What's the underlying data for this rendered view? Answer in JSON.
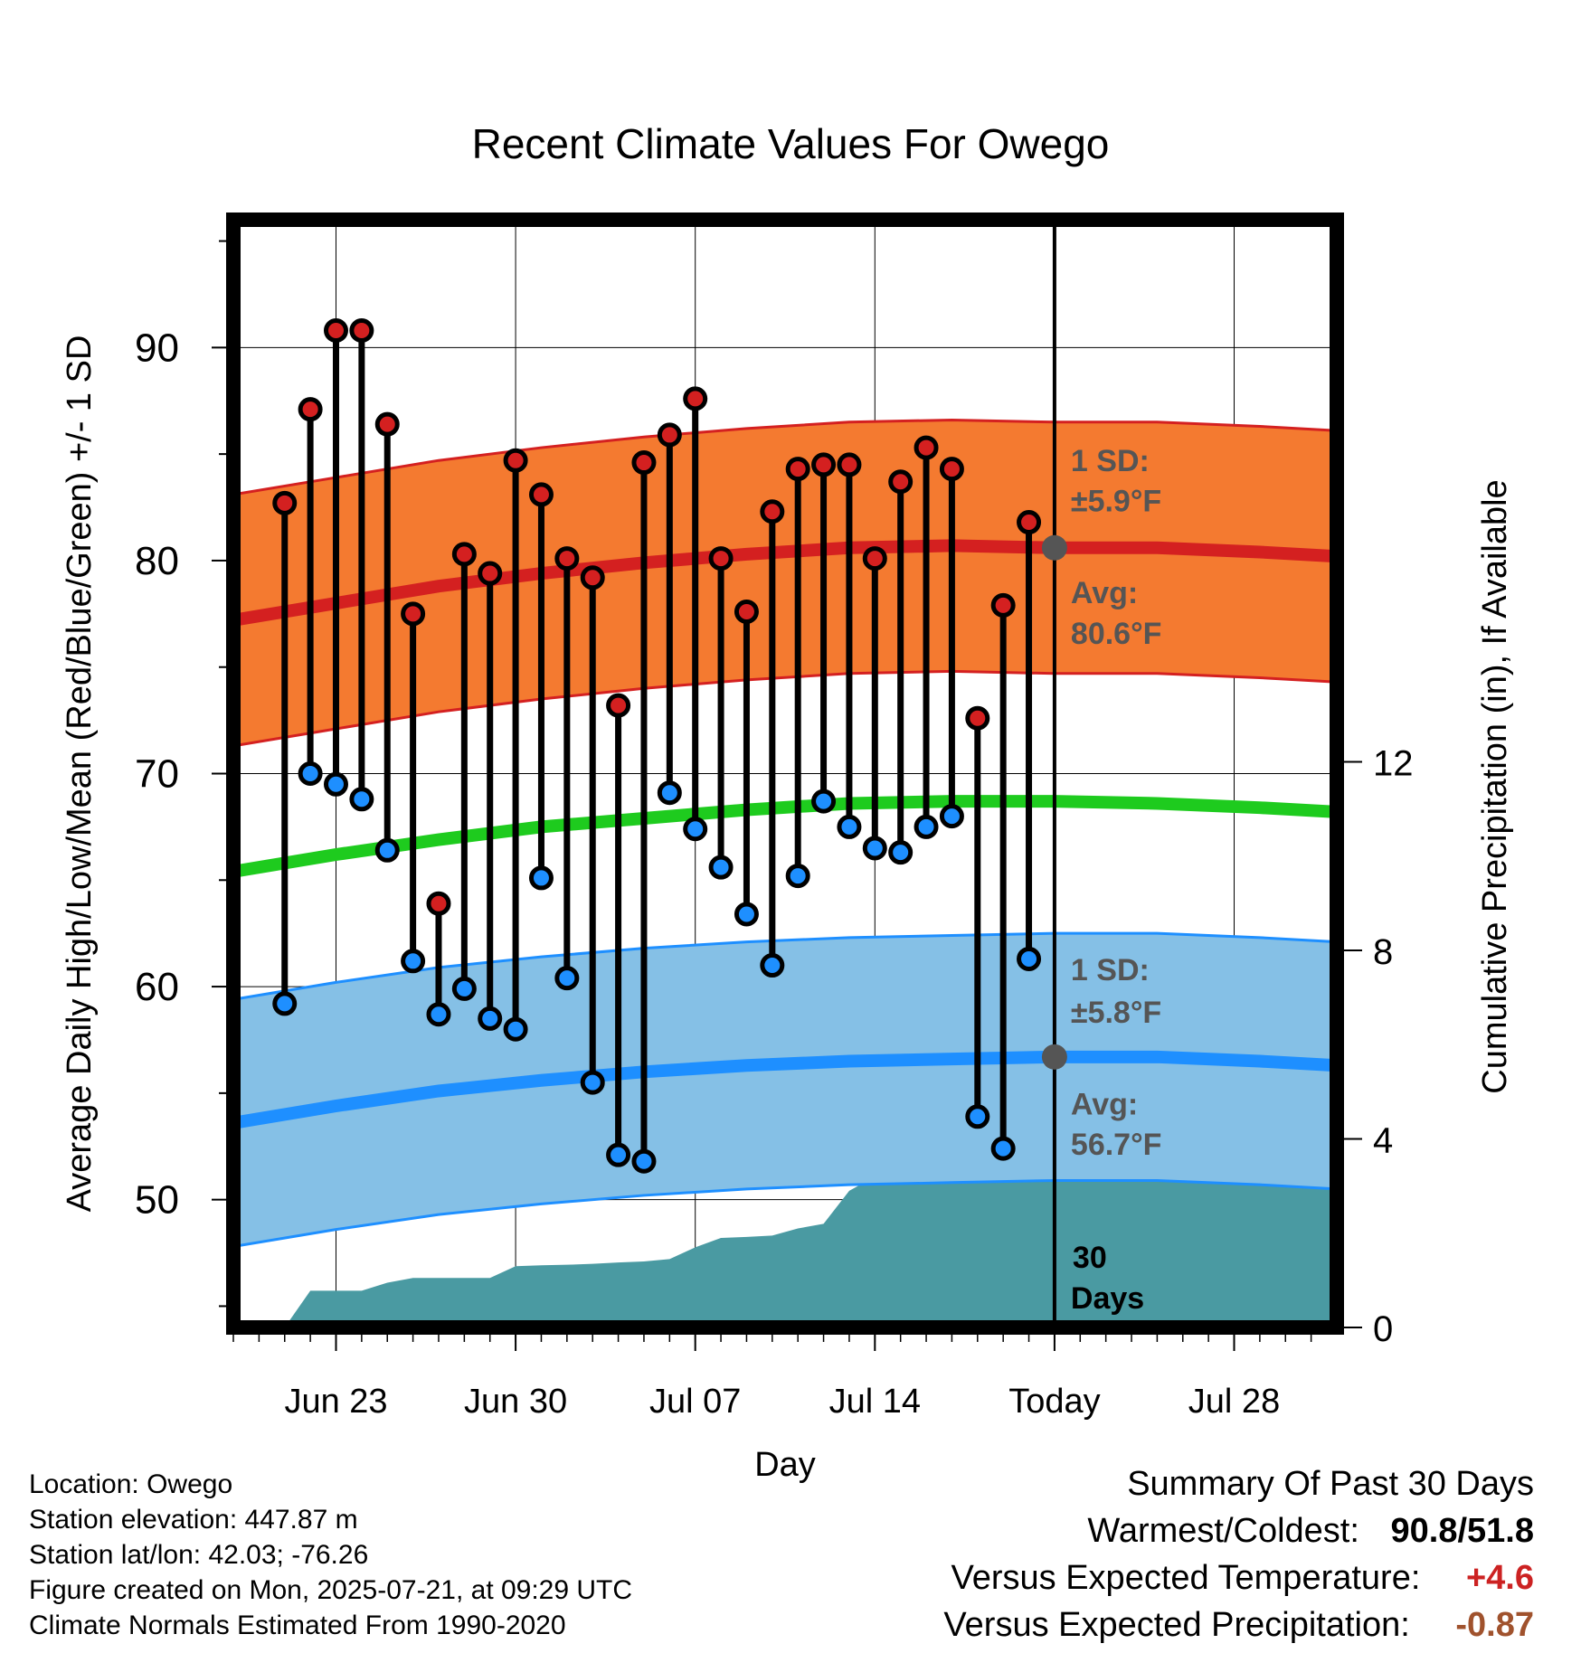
{
  "chart_data": {
    "type": "line",
    "title": "Recent Climate Values For Owego",
    "xlabel": "Day",
    "ylabel": "Average Daily High/Low/Mean (Red/Blue/Green) +/- 1 SD",
    "y2label": "Cumulative Precipitation (in), If Available",
    "x_domain": [
      "2025-06-19",
      "2025-08-01"
    ],
    "ylim": [
      44,
      96
    ],
    "y2lim": [
      0,
      23.5
    ],
    "y_ticks": [
      50,
      60,
      70,
      80,
      90
    ],
    "y2_ticks": [
      0,
      4,
      8,
      12
    ],
    "x_ticks": [
      {
        "date": "2025-06-23",
        "label": "Jun 23"
      },
      {
        "date": "2025-06-30",
        "label": "Jun 30"
      },
      {
        "date": "2025-07-07",
        "label": "Jul 07"
      },
      {
        "date": "2025-07-14",
        "label": "Jul 14"
      },
      {
        "date": "2025-07-21",
        "label": "Today"
      },
      {
        "date": "2025-07-28",
        "label": "Jul 28"
      }
    ],
    "today": "2025-07-21",
    "grid": true,
    "daily": {
      "dates": [
        "2025-06-21",
        "2025-06-22",
        "2025-06-23",
        "2025-06-24",
        "2025-06-25",
        "2025-06-26",
        "2025-06-27",
        "2025-06-28",
        "2025-06-29",
        "2025-06-30",
        "2025-07-01",
        "2025-07-02",
        "2025-07-03",
        "2025-07-04",
        "2025-07-05",
        "2025-07-06",
        "2025-07-07",
        "2025-07-08",
        "2025-07-09",
        "2025-07-10",
        "2025-07-11",
        "2025-07-12",
        "2025-07-13",
        "2025-07-14",
        "2025-07-15",
        "2025-07-16",
        "2025-07-17",
        "2025-07-18",
        "2025-07-19",
        "2025-07-20"
      ],
      "high": [
        82.7,
        87.1,
        90.8,
        90.8,
        86.4,
        77.5,
        63.9,
        80.3,
        79.4,
        84.7,
        83.1,
        80.1,
        79.2,
        73.2,
        84.6,
        85.9,
        87.6,
        80.1,
        77.6,
        82.3,
        84.3,
        84.5,
        84.5,
        80.1,
        83.7,
        85.3,
        84.3,
        72.6,
        77.9,
        81.8
      ],
      "low": [
        59.2,
        70.0,
        69.5,
        68.8,
        66.4,
        61.2,
        58.7,
        59.9,
        58.5,
        58.0,
        65.1,
        60.4,
        55.5,
        52.1,
        51.8,
        69.1,
        67.4,
        65.6,
        63.4,
        61.0,
        65.2,
        68.7,
        67.5,
        66.5,
        66.3,
        67.5,
        68.0,
        53.9,
        52.4,
        61.3
      ]
    },
    "normals": {
      "dates": [
        "2025-06-19",
        "2025-06-23",
        "2025-06-27",
        "2025-07-01",
        "2025-07-05",
        "2025-07-09",
        "2025-07-13",
        "2025-07-17",
        "2025-07-21",
        "2025-07-25",
        "2025-07-29",
        "2025-08-01"
      ],
      "high_avg": [
        77.2,
        78.0,
        78.8,
        79.4,
        79.9,
        80.3,
        80.6,
        80.7,
        80.6,
        80.6,
        80.4,
        80.2
      ],
      "low_avg": [
        53.6,
        54.4,
        55.1,
        55.6,
        56.0,
        56.3,
        56.5,
        56.6,
        56.7,
        56.7,
        56.5,
        56.3
      ],
      "mean_avg": [
        65.4,
        66.2,
        66.9,
        67.5,
        67.9,
        68.3,
        68.6,
        68.7,
        68.7,
        68.6,
        68.4,
        68.2
      ],
      "high_sd": 5.9,
      "low_sd": 5.8
    },
    "precip_cumulative": {
      "dates": [
        "2025-06-20",
        "2025-06-21",
        "2025-06-22",
        "2025-06-23",
        "2025-06-24",
        "2025-06-25",
        "2025-06-26",
        "2025-06-27",
        "2025-06-28",
        "2025-06-29",
        "2025-06-30",
        "2025-07-01",
        "2025-07-02",
        "2025-07-03",
        "2025-07-04",
        "2025-07-05",
        "2025-07-06",
        "2025-07-07",
        "2025-07-08",
        "2025-07-09",
        "2025-07-10",
        "2025-07-11",
        "2025-07-12",
        "2025-07-13",
        "2025-07-14",
        "2025-07-15",
        "2025-07-16",
        "2025-07-17",
        "2025-07-18",
        "2025-07-19",
        "2025-07-20",
        "2025-07-21",
        "2025-07-28",
        "2025-08-01"
      ],
      "values": [
        0,
        0.0,
        0.78,
        0.78,
        0.78,
        0.95,
        1.05,
        1.05,
        1.05,
        1.05,
        1.3,
        1.32,
        1.33,
        1.35,
        1.38,
        1.4,
        1.45,
        1.7,
        1.9,
        1.92,
        1.95,
        2.1,
        2.2,
        2.9,
        3.2,
        3.25,
        3.3,
        3.3,
        3.3,
        3.3,
        3.32,
        3.32,
        3.32,
        3.32
      ]
    },
    "annotations": {
      "high_sd_label": "1 SD:",
      "high_sd_value": "±5.9°F",
      "high_avg_label": "Avg:",
      "high_avg_value": "80.6°F",
      "low_sd_label": "1 SD:",
      "low_sd_value": "±5.8°F",
      "low_avg_label": "Avg:",
      "low_avg_value": "56.7°F",
      "window_label_1": "30",
      "window_label_2": "Days"
    },
    "colors": {
      "high_band": "#f47a30",
      "high_line": "#d42020",
      "low_band": "#85c0e6",
      "low_line": "#1e8fff",
      "mean_line": "#1ecb1e",
      "precip_fill": "#4a9aa2",
      "high_marker": "#d42020",
      "low_marker": "#1e8fff",
      "annotation_text": "#555555"
    }
  },
  "info": {
    "location": "Location: Owego",
    "elevation": "Station elevation: 447.87 m",
    "latlon": "Station lat/lon: 42.03; -76.26",
    "created": "Figure created on Mon, 2025-07-21, at 09:29 UTC",
    "normals": "Climate Normals Estimated From 1990-2020"
  },
  "summary": {
    "title": "Summary Of Past 30 Days",
    "warm_cold_label": "Warmest/Coldest:",
    "warm_value": "90.8",
    "cold_value": "51.8",
    "temp_label": "Versus Expected Temperature:",
    "temp_value": "+4.6",
    "precip_label": "Versus Expected Precipitation:",
    "precip_value": "-0.87"
  }
}
